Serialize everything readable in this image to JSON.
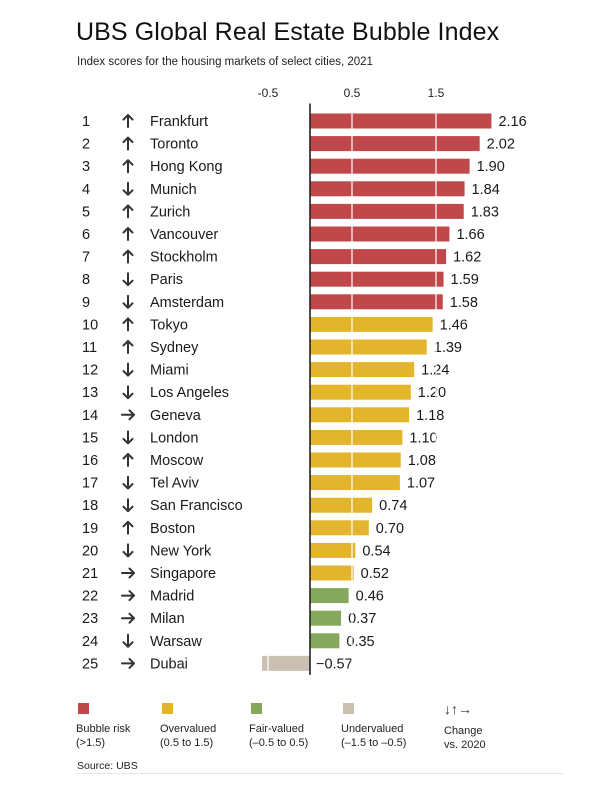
{
  "title": "UBS Global Real Estate Bubble Index",
  "subtitle": "Index scores for the housing markets of select cities, 2021",
  "source": "Source: UBS",
  "colors": {
    "bubble": "#c0474a",
    "overvalued": "#e2b52d",
    "fair": "#86a85c",
    "undervalued": "#c9c0b2",
    "axis": "#222222"
  },
  "legend": [
    {
      "key": "bubble",
      "label": "Bubble risk\n(>1.5)"
    },
    {
      "key": "overvalued",
      "label": "Overvalued\n(0.5 to 1.5)"
    },
    {
      "key": "fair",
      "label": "Fair-valued\n(–0.5 to 0.5)"
    },
    {
      "key": "undervalued",
      "label": "Undervalued\n(–1.5 to –0.5)"
    },
    {
      "key": "change",
      "label": "Change\nvs. 2020",
      "icon": "↓↑→"
    }
  ],
  "chart_data": {
    "type": "bar",
    "orientation": "horizontal",
    "title": "UBS Global Real Estate Bubble Index",
    "subtitle": "Index scores for the housing markets of select cities, 2021",
    "xlim": [
      -0.5,
      2.16
    ],
    "ticks": [
      -0.5,
      0.5,
      1.5
    ],
    "tick_labels": [
      "-0.5",
      "0.5",
      "1.5"
    ],
    "rows": [
      {
        "rank": "1",
        "change": "up",
        "city": "Frankfurt",
        "value": 2.16,
        "label": "2.16",
        "category": "bubble"
      },
      {
        "rank": "2",
        "change": "up",
        "city": "Toronto",
        "value": 2.02,
        "label": "2.02",
        "category": "bubble"
      },
      {
        "rank": "3",
        "change": "up",
        "city": "Hong Kong",
        "value": 1.9,
        "label": "1.90",
        "category": "bubble"
      },
      {
        "rank": "4",
        "change": "down",
        "city": "Munich",
        "value": 1.84,
        "label": "1.84",
        "category": "bubble"
      },
      {
        "rank": "5",
        "change": "up",
        "city": "Zurich",
        "value": 1.83,
        "label": "1.83",
        "category": "bubble"
      },
      {
        "rank": "6",
        "change": "up",
        "city": "Vancouver",
        "value": 1.66,
        "label": "1.66",
        "category": "bubble"
      },
      {
        "rank": "7",
        "change": "up",
        "city": "Stockholm",
        "value": 1.62,
        "label": "1.62",
        "category": "bubble"
      },
      {
        "rank": "8",
        "change": "down",
        "city": "Paris",
        "value": 1.59,
        "label": "1.59",
        "category": "bubble"
      },
      {
        "rank": "9",
        "change": "down",
        "city": "Amsterdam",
        "value": 1.58,
        "label": "1.58",
        "category": "bubble"
      },
      {
        "rank": "10",
        "change": "up",
        "city": "Tokyo",
        "value": 1.46,
        "label": "1.46",
        "category": "overvalued"
      },
      {
        "rank": "11",
        "change": "up",
        "city": "Sydney",
        "value": 1.39,
        "label": "1.39",
        "category": "overvalued"
      },
      {
        "rank": "12",
        "change": "down",
        "city": "Miami",
        "value": 1.24,
        "label": "1.24",
        "category": "overvalued"
      },
      {
        "rank": "13",
        "change": "down",
        "city": "Los Angeles",
        "value": 1.2,
        "label": "1.20",
        "category": "overvalued"
      },
      {
        "rank": "14",
        "change": "right",
        "city": "Geneva",
        "value": 1.18,
        "label": "1.18",
        "category": "overvalued"
      },
      {
        "rank": "15",
        "change": "down",
        "city": "London",
        "value": 1.1,
        "label": "1.10",
        "category": "overvalued"
      },
      {
        "rank": "16",
        "change": "up",
        "city": "Moscow",
        "value": 1.08,
        "label": "1.08",
        "category": "overvalued"
      },
      {
        "rank": "17",
        "change": "down",
        "city": "Tel Aviv",
        "value": 1.07,
        "label": "1.07",
        "category": "overvalued"
      },
      {
        "rank": "18",
        "change": "down",
        "city": "San Francisco",
        "value": 0.74,
        "label": "0.74",
        "category": "overvalued"
      },
      {
        "rank": "19",
        "change": "up",
        "city": "Boston",
        "value": 0.7,
        "label": "0.70",
        "category": "overvalued"
      },
      {
        "rank": "20",
        "change": "down",
        "city": "New York",
        "value": 0.54,
        "label": "0.54",
        "category": "overvalued"
      },
      {
        "rank": "21",
        "change": "right",
        "city": "Singapore",
        "value": 0.52,
        "label": "0.52",
        "category": "overvalued"
      },
      {
        "rank": "22",
        "change": "right",
        "city": "Madrid",
        "value": 0.46,
        "label": "0.46",
        "category": "fair"
      },
      {
        "rank": "23",
        "change": "right",
        "city": "Milan",
        "value": 0.37,
        "label": "0.37",
        "category": "fair"
      },
      {
        "rank": "24",
        "change": "down",
        "city": "Warsaw",
        "value": 0.35,
        "label": "0.35",
        "category": "fair"
      },
      {
        "rank": "25",
        "change": "right",
        "city": "Dubai",
        "value": -0.57,
        "label": "−0.57",
        "category": "undervalued"
      }
    ]
  }
}
